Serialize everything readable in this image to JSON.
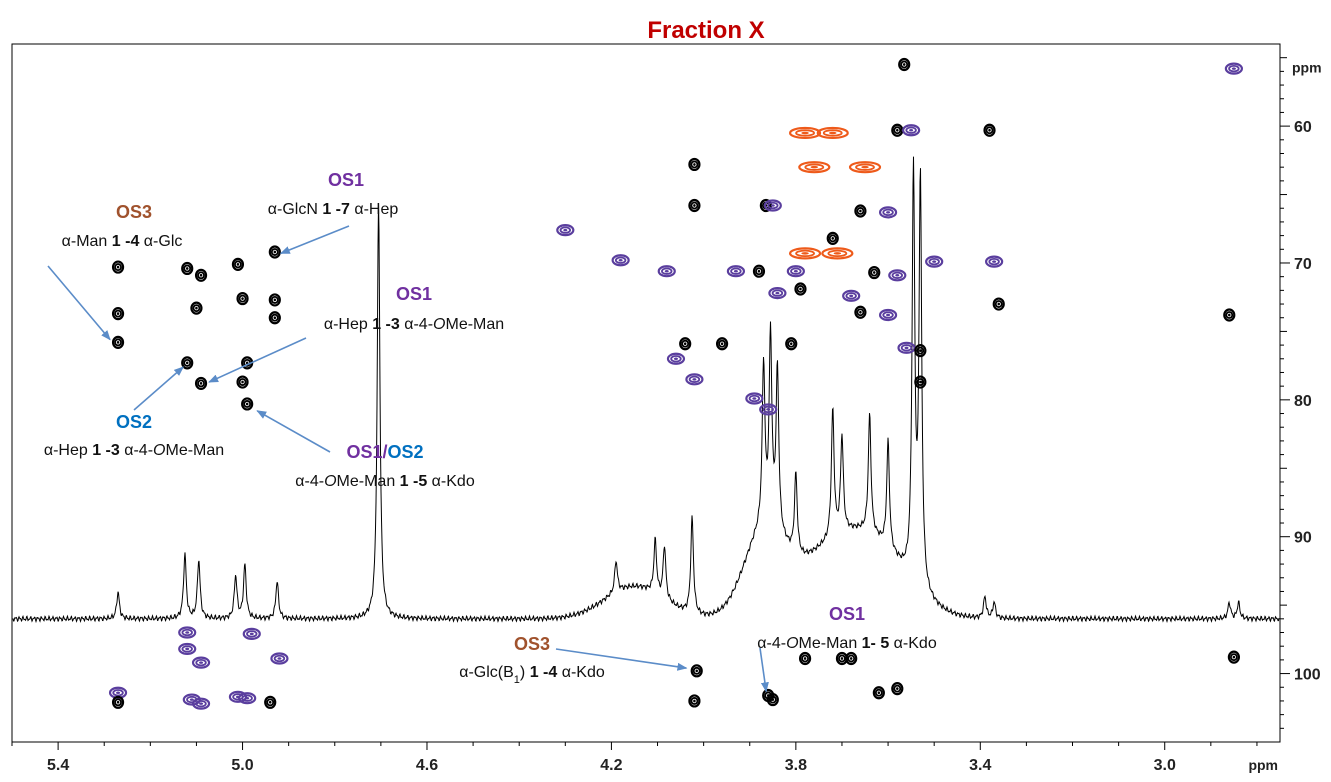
{
  "chart_data": {
    "type": "2D-NMR spectrum",
    "title": "Fraction X",
    "x_axis": {
      "label": "ppm",
      "range": [
        5.5,
        2.75
      ],
      "ticks": [
        5.4,
        5.0,
        4.6,
        4.2,
        3.8,
        3.4,
        3.0
      ],
      "tick_labels": [
        "5.4",
        "5.0",
        "4.6",
        "4.2",
        "3.8",
        "3.4",
        "3.0"
      ]
    },
    "y_axis": {
      "label": "ppm",
      "range": [
        54,
        105
      ],
      "ticks": [
        60,
        70,
        80,
        90,
        100
      ],
      "tick_labels": [
        "60",
        "70",
        "80",
        "90",
        "100"
      ]
    },
    "colors": {
      "title": "#c00000",
      "contour_black": "#000000",
      "contour_purple": "#5a3e9e",
      "contour_orange": "#ee5a1a",
      "OS1": "#7030a0",
      "OS2": "#0070c0",
      "OS3": "#a0522d",
      "arrow": "#5b8cc8"
    },
    "proton_1d_trace": {
      "baseline_ppm": 96,
      "peaks": [
        {
          "x": 5.27,
          "height": 0.05
        },
        {
          "x": 5.125,
          "height": 0.12
        },
        {
          "x": 5.095,
          "height": 0.11
        },
        {
          "x": 5.015,
          "height": 0.08
        },
        {
          "x": 4.995,
          "height": 0.1
        },
        {
          "x": 4.925,
          "height": 0.07
        },
        {
          "x": 4.705,
          "height": 0.78
        },
        {
          "x": 4.19,
          "height": 0.06
        },
        {
          "x": 4.105,
          "height": 0.1
        },
        {
          "x": 4.085,
          "height": 0.1
        },
        {
          "x": 4.025,
          "height": 0.18
        },
        {
          "x": 3.87,
          "height": 0.3
        },
        {
          "x": 3.855,
          "height": 0.35
        },
        {
          "x": 3.84,
          "height": 0.3
        },
        {
          "x": 3.8,
          "height": 0.15
        },
        {
          "x": 3.72,
          "height": 0.24
        },
        {
          "x": 3.7,
          "height": 0.18
        },
        {
          "x": 3.64,
          "height": 0.22
        },
        {
          "x": 3.6,
          "height": 0.2
        },
        {
          "x": 3.545,
          "height": 0.76
        },
        {
          "x": 3.53,
          "height": 0.76
        },
        {
          "x": 3.39,
          "height": 0.04
        },
        {
          "x": 3.37,
          "height": 0.03
        },
        {
          "x": 2.86,
          "height": 0.03
        },
        {
          "x": 2.84,
          "height": 0.03
        }
      ]
    },
    "cross_peaks": [
      {
        "x": 3.565,
        "y": 55.5,
        "color": "black"
      },
      {
        "x": 2.85,
        "y": 55.8,
        "color": "purple"
      },
      {
        "x": 3.78,
        "y": 60.5,
        "color": "orange"
      },
      {
        "x": 3.72,
        "y": 60.5,
        "color": "orange"
      },
      {
        "x": 3.76,
        "y": 63.0,
        "color": "orange"
      },
      {
        "x": 3.65,
        "y": 63.0,
        "color": "orange"
      },
      {
        "x": 3.58,
        "y": 60.3,
        "color": "black"
      },
      {
        "x": 3.55,
        "y": 60.3,
        "color": "purple"
      },
      {
        "x": 3.38,
        "y": 60.3,
        "color": "black"
      },
      {
        "x": 4.02,
        "y": 62.8,
        "color": "black"
      },
      {
        "x": 4.02,
        "y": 65.8,
        "color": "black"
      },
      {
        "x": 3.865,
        "y": 65.8,
        "color": "black"
      },
      {
        "x": 3.85,
        "y": 65.8,
        "color": "purple"
      },
      {
        "x": 3.66,
        "y": 66.2,
        "color": "black"
      },
      {
        "x": 3.6,
        "y": 66.3,
        "color": "purple"
      },
      {
        "x": 4.3,
        "y": 67.6,
        "color": "purple"
      },
      {
        "x": 4.18,
        "y": 69.8,
        "color": "purple"
      },
      {
        "x": 4.08,
        "y": 70.6,
        "color": "purple"
      },
      {
        "x": 3.93,
        "y": 70.6,
        "color": "purple"
      },
      {
        "x": 3.88,
        "y": 70.6,
        "color": "black"
      },
      {
        "x": 3.8,
        "y": 70.6,
        "color": "purple"
      },
      {
        "x": 3.72,
        "y": 68.2,
        "color": "black"
      },
      {
        "x": 3.71,
        "y": 69.3,
        "color": "orange"
      },
      {
        "x": 3.78,
        "y": 69.3,
        "color": "orange"
      },
      {
        "x": 3.63,
        "y": 70.7,
        "color": "black"
      },
      {
        "x": 3.58,
        "y": 70.9,
        "color": "purple"
      },
      {
        "x": 3.5,
        "y": 69.9,
        "color": "purple"
      },
      {
        "x": 3.37,
        "y": 69.9,
        "color": "purple"
      },
      {
        "x": 3.84,
        "y": 72.2,
        "color": "purple"
      },
      {
        "x": 3.79,
        "y": 71.9,
        "color": "black"
      },
      {
        "x": 3.68,
        "y": 72.4,
        "color": "purple"
      },
      {
        "x": 3.66,
        "y": 73.6,
        "color": "black"
      },
      {
        "x": 3.6,
        "y": 73.8,
        "color": "purple"
      },
      {
        "x": 3.36,
        "y": 73.0,
        "color": "black"
      },
      {
        "x": 3.56,
        "y": 76.2,
        "color": "purple"
      },
      {
        "x": 3.53,
        "y": 76.4,
        "color": "black"
      },
      {
        "x": 3.53,
        "y": 78.7,
        "color": "black"
      },
      {
        "x": 4.04,
        "y": 75.9,
        "color": "black"
      },
      {
        "x": 3.96,
        "y": 75.9,
        "color": "black"
      },
      {
        "x": 3.81,
        "y": 75.9,
        "color": "black"
      },
      {
        "x": 4.06,
        "y": 77.0,
        "color": "purple"
      },
      {
        "x": 4.02,
        "y": 78.5,
        "color": "purple"
      },
      {
        "x": 3.89,
        "y": 79.9,
        "color": "purple"
      },
      {
        "x": 3.86,
        "y": 80.7,
        "color": "purple"
      },
      {
        "x": 2.86,
        "y": 73.8,
        "color": "black"
      },
      {
        "x": 5.27,
        "y": 70.3,
        "color": "black"
      },
      {
        "x": 5.27,
        "y": 73.7,
        "color": "black"
      },
      {
        "x": 5.27,
        "y": 75.8,
        "color": "black"
      },
      {
        "x": 5.12,
        "y": 70.4,
        "color": "black"
      },
      {
        "x": 5.09,
        "y": 70.9,
        "color": "black"
      },
      {
        "x": 5.1,
        "y": 73.3,
        "color": "black"
      },
      {
        "x": 5.01,
        "y": 70.1,
        "color": "black"
      },
      {
        "x": 5.0,
        "y": 72.6,
        "color": "black"
      },
      {
        "x": 4.93,
        "y": 69.2,
        "color": "black"
      },
      {
        "x": 4.93,
        "y": 72.7,
        "color": "black"
      },
      {
        "x": 4.93,
        "y": 74.0,
        "color": "black"
      },
      {
        "x": 5.12,
        "y": 77.3,
        "color": "black"
      },
      {
        "x": 5.09,
        "y": 78.8,
        "color": "black"
      },
      {
        "x": 4.99,
        "y": 77.3,
        "color": "black"
      },
      {
        "x": 5.0,
        "y": 78.7,
        "color": "black"
      },
      {
        "x": 4.99,
        "y": 80.3,
        "color": "black"
      },
      {
        "x": 5.12,
        "y": 97.0,
        "color": "purple"
      },
      {
        "x": 5.12,
        "y": 98.2,
        "color": "purple"
      },
      {
        "x": 4.98,
        "y": 97.1,
        "color": "purple"
      },
      {
        "x": 5.09,
        "y": 99.2,
        "color": "purple"
      },
      {
        "x": 4.92,
        "y": 98.9,
        "color": "purple"
      },
      {
        "x": 5.27,
        "y": 101.4,
        "color": "purple"
      },
      {
        "x": 5.27,
        "y": 102.1,
        "color": "black"
      },
      {
        "x": 5.11,
        "y": 101.9,
        "color": "purple"
      },
      {
        "x": 5.09,
        "y": 102.2,
        "color": "purple"
      },
      {
        "x": 5.01,
        "y": 101.7,
        "color": "purple"
      },
      {
        "x": 4.99,
        "y": 101.8,
        "color": "purple"
      },
      {
        "x": 4.94,
        "y": 102.1,
        "color": "black"
      },
      {
        "x": 4.02,
        "y": 102.0,
        "color": "black"
      },
      {
        "x": 3.86,
        "y": 101.6,
        "color": "black"
      },
      {
        "x": 3.85,
        "y": 101.9,
        "color": "black"
      },
      {
        "x": 3.78,
        "y": 98.9,
        "color": "black"
      },
      {
        "x": 3.7,
        "y": 98.9,
        "color": "black"
      },
      {
        "x": 3.68,
        "y": 98.9,
        "color": "black"
      },
      {
        "x": 3.62,
        "y": 101.4,
        "color": "black"
      },
      {
        "x": 3.58,
        "y": 101.1,
        "color": "black"
      },
      {
        "x": 4.015,
        "y": 99.8,
        "color": "black"
      },
      {
        "x": 2.85,
        "y": 98.8,
        "color": "black"
      }
    ],
    "annotations": [
      {
        "group": [
          {
            "text": "OS3",
            "color": "OS3"
          }
        ],
        "line": [
          {
            "t": "α-Man "
          },
          {
            "t": "1 -4",
            "b": true
          },
          {
            "t": " α-Glc"
          }
        ]
      },
      {
        "group": [
          {
            "text": "OS1",
            "color": "OS1"
          }
        ],
        "line": [
          {
            "t": "α-GlcN "
          },
          {
            "t": "1 -7",
            "b": true
          },
          {
            "t": " α-Hep"
          }
        ]
      },
      {
        "group": [
          {
            "text": "OS1",
            "color": "OS1"
          }
        ],
        "line": [
          {
            "t": "α-Hep "
          },
          {
            "t": "1 -3",
            "b": true
          },
          {
            "t": " α-4-"
          },
          {
            "t": "O",
            "i": true
          },
          {
            "t": "Me-Man"
          }
        ]
      },
      {
        "group": [
          {
            "text": "OS2",
            "color": "OS2"
          }
        ],
        "line": [
          {
            "t": "α-Hep "
          },
          {
            "t": "1 -3",
            "b": true
          },
          {
            "t": " α-4-"
          },
          {
            "t": "O",
            "i": true
          },
          {
            "t": "Me-Man"
          }
        ]
      },
      {
        "group": [
          {
            "text": "OS1",
            "color": "OS1"
          },
          {
            "text": "/",
            "color": "OS1"
          },
          {
            "text": "OS2",
            "color": "OS2"
          }
        ],
        "line": [
          {
            "t": "α-4-"
          },
          {
            "t": "O",
            "i": true
          },
          {
            "t": "Me-Man "
          },
          {
            "t": "1 -5",
            "b": true
          },
          {
            "t": " α-Kdo"
          }
        ]
      },
      {
        "group": [
          {
            "text": "OS3",
            "color": "OS3"
          }
        ],
        "line": [
          {
            "t": "α-Glc(B"
          },
          {
            "t": "1",
            "sub": true
          },
          {
            "t": ") "
          },
          {
            "t": "1 -4",
            "b": true
          },
          {
            "t": " α-Kdo"
          }
        ]
      },
      {
        "group": [
          {
            "text": "OS1",
            "color": "OS1"
          }
        ],
        "line": [
          {
            "t": "α-4-"
          },
          {
            "t": "O",
            "i": true
          },
          {
            "t": "Me-Man "
          },
          {
            "t": "1- 5",
            "b": true
          },
          {
            "t": " α-Kdo"
          }
        ]
      }
    ]
  }
}
